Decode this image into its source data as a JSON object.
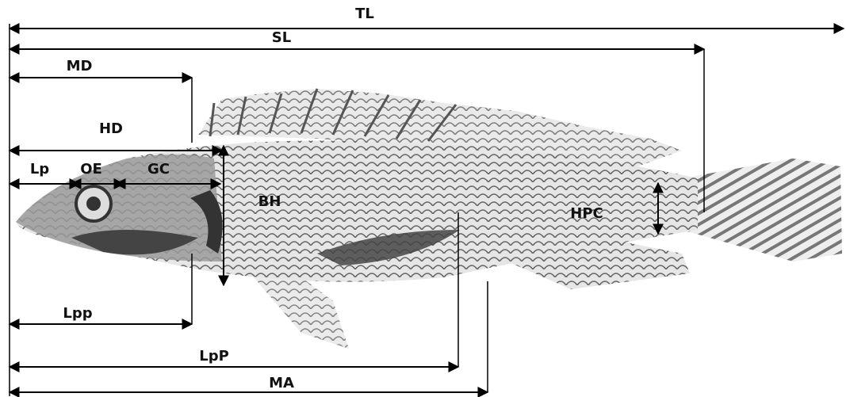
{
  "measurements": [
    "TL",
    "SL",
    "MD",
    "HD",
    "Lp",
    "OE",
    "GC",
    "BH",
    "HPC",
    "Lpp",
    "LpP",
    "MA"
  ]
}
